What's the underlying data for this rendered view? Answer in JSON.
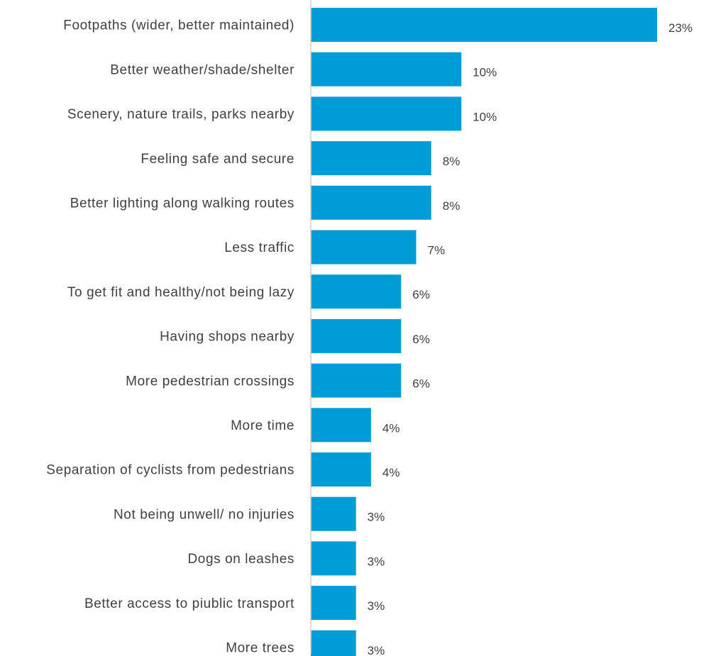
{
  "chart_data": {
    "type": "bar",
    "orientation": "horizontal",
    "title": "",
    "xlabel": "",
    "ylabel": "",
    "grid": false,
    "legend": "none",
    "xlim": [
      0,
      23
    ],
    "bar_color": "#009cd8",
    "categories": [
      "Footpaths (wider, better maintained)",
      "Better weather/shade/shelter",
      "Scenery, nature trails, parks nearby",
      "Feeling safe and secure",
      "Better lighting along walking routes",
      "Less traffic",
      "To get fit and healthy/not being lazy",
      "Having shops nearby",
      "More pedestrian crossings",
      "More time",
      "Separation of cyclists from pedestrians",
      "Not being unwell/ no injuries",
      "Dogs on leashes",
      "Better access to piublic transport",
      "More trees"
    ],
    "values": [
      23,
      10,
      10,
      8,
      8,
      7,
      6,
      6,
      6,
      4,
      4,
      3,
      3,
      3,
      3
    ],
    "value_labels": [
      "23%",
      "10%",
      "10%",
      "8%",
      "8%",
      "7%",
      "6%",
      "6%",
      "6%",
      "4%",
      "4%",
      "3%",
      "3%",
      "3%",
      "3%"
    ]
  }
}
